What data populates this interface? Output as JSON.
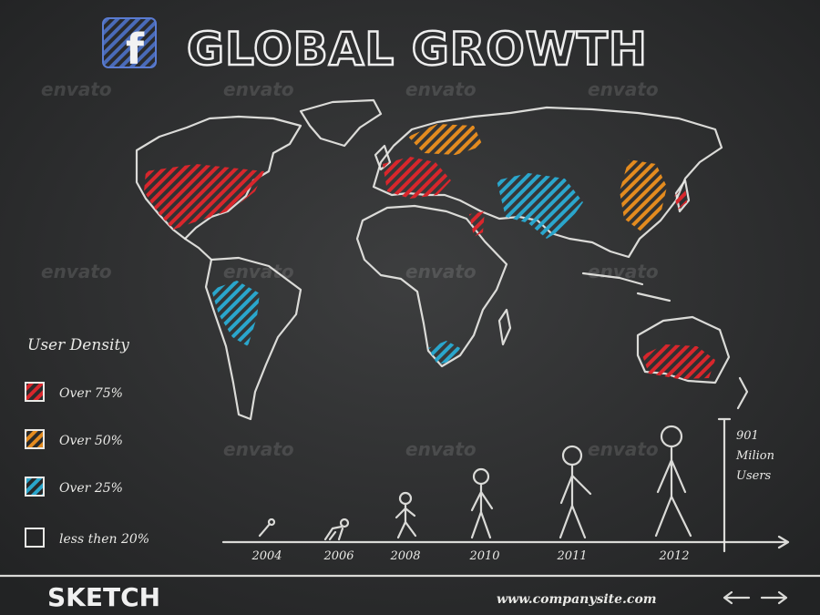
{
  "header": {
    "icon": "f",
    "title": "GLOBAL GROWTH"
  },
  "watermark": "envato",
  "legend": {
    "title": "User Density",
    "items": [
      "Over 75%",
      "Over 50%",
      "Over 25%",
      "less then 20%"
    ]
  },
  "timeline": {
    "years": [
      "2004",
      "2006",
      "2008",
      "2010",
      "2011",
      "2012"
    ],
    "total": [
      "901",
      "Milion",
      "Users"
    ]
  },
  "footer": {
    "brand": "SKETCH",
    "url": "www.companysite.com"
  }
}
